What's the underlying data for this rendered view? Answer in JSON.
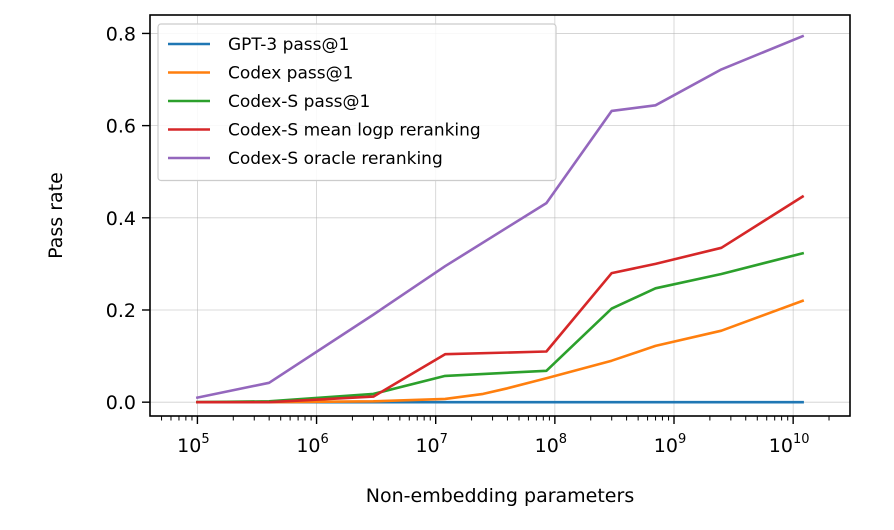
{
  "chart_data": {
    "type": "line",
    "xlabel": "Non-embedding parameters",
    "ylabel": "Pass rate",
    "x_scale": "log",
    "x_ticks": [
      {
        "base": "10",
        "exp": "5"
      },
      {
        "base": "10",
        "exp": "6"
      },
      {
        "base": "10",
        "exp": "7"
      },
      {
        "base": "10",
        "exp": "8"
      },
      {
        "base": "10",
        "exp": "9"
      },
      {
        "base": "10",
        "exp": "10"
      }
    ],
    "y_ticks": [
      "0.0",
      "0.2",
      "0.4",
      "0.6",
      "0.8"
    ],
    "xlim": [
      40000,
      30000000000
    ],
    "ylim": [
      -0.03,
      0.84
    ],
    "grid": true,
    "legend_position": "top-left",
    "series": [
      {
        "name": "GPT-3 pass@1",
        "color": "#1f77b4",
        "x": [
          100000,
          400000,
          3000000,
          12000000,
          25000000,
          85000000,
          300000000,
          700000000,
          2500000000,
          12000000000
        ],
        "y": [
          0.0,
          0.0,
          0.0,
          0.0,
          0.0,
          0.0,
          0.0,
          0.0,
          0.0,
          0.0
        ]
      },
      {
        "name": "Codex pass@1",
        "color": "#ff7f0e",
        "x": [
          100000,
          400000,
          3000000,
          12000000,
          25000000,
          40000000,
          85000000,
          300000000,
          700000000,
          2500000000,
          12000000000
        ],
        "y": [
          0.0,
          0.0,
          0.002,
          0.007,
          0.018,
          0.03,
          0.052,
          0.09,
          0.122,
          0.155,
          0.22
        ]
      },
      {
        "name": "Codex-S pass@1",
        "color": "#2ca02c",
        "x": [
          100000,
          400000,
          3000000,
          12000000,
          85000000,
          300000000,
          700000000,
          2500000000,
          12000000000
        ],
        "y": [
          0.0,
          0.002,
          0.018,
          0.057,
          0.068,
          0.203,
          0.247,
          0.278,
          0.323
        ]
      },
      {
        "name": "Codex-S mean logp reranking",
        "color": "#d62728",
        "x": [
          100000,
          400000,
          3000000,
          12000000,
          85000000,
          300000000,
          700000000,
          2500000000,
          12000000000
        ],
        "y": [
          0.0,
          0.0,
          0.012,
          0.104,
          0.11,
          0.28,
          0.3,
          0.335,
          0.446
        ]
      },
      {
        "name": "Codex-S oracle reranking",
        "color": "#9467bd",
        "x": [
          100000,
          400000,
          3000000,
          12000000,
          85000000,
          300000000,
          700000000,
          2500000000,
          12000000000
        ],
        "y": [
          0.01,
          0.042,
          0.19,
          0.295,
          0.432,
          0.632,
          0.644,
          0.722,
          0.794
        ]
      }
    ]
  }
}
